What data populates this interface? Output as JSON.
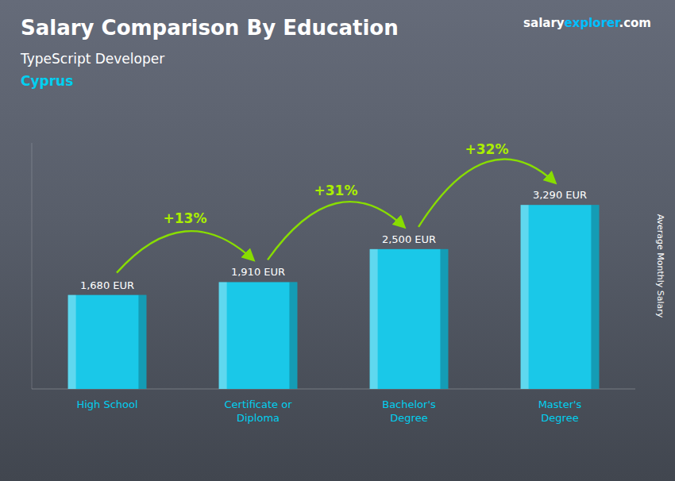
{
  "chart_data": {
    "type": "bar",
    "title": "Salary Comparison By Education",
    "subtitle": [
      "TypeScript Developer",
      "Cyprus"
    ],
    "categories": [
      "High School",
      "Certificate or\nDiploma",
      "Bachelor's\nDegree",
      "Master's\nDegree"
    ],
    "values": [
      1680,
      1910,
      2500,
      3290
    ],
    "value_labels": [
      "1,680 EUR",
      "1,910 EUR",
      "2,500 EUR",
      "3,290 EUR"
    ],
    "data_labels": true,
    "color": "#1ac8e8",
    "y_label": "Average Monthly Salary",
    "ylim": [
      0,
      4400
    ],
    "yticks": [],
    "tick_labels": "x",
    "grid": false,
    "annotations": [
      {
        "text": "+13%",
        "arrow": true
      },
      {
        "text": "+31%",
        "arrow": true
      },
      {
        "text": "+32%",
        "arrow": true
      },
      {
        "text": "salary"
      },
      {
        "text": "explorer"
      },
      {
        "text": ".com"
      }
    ]
  }
}
